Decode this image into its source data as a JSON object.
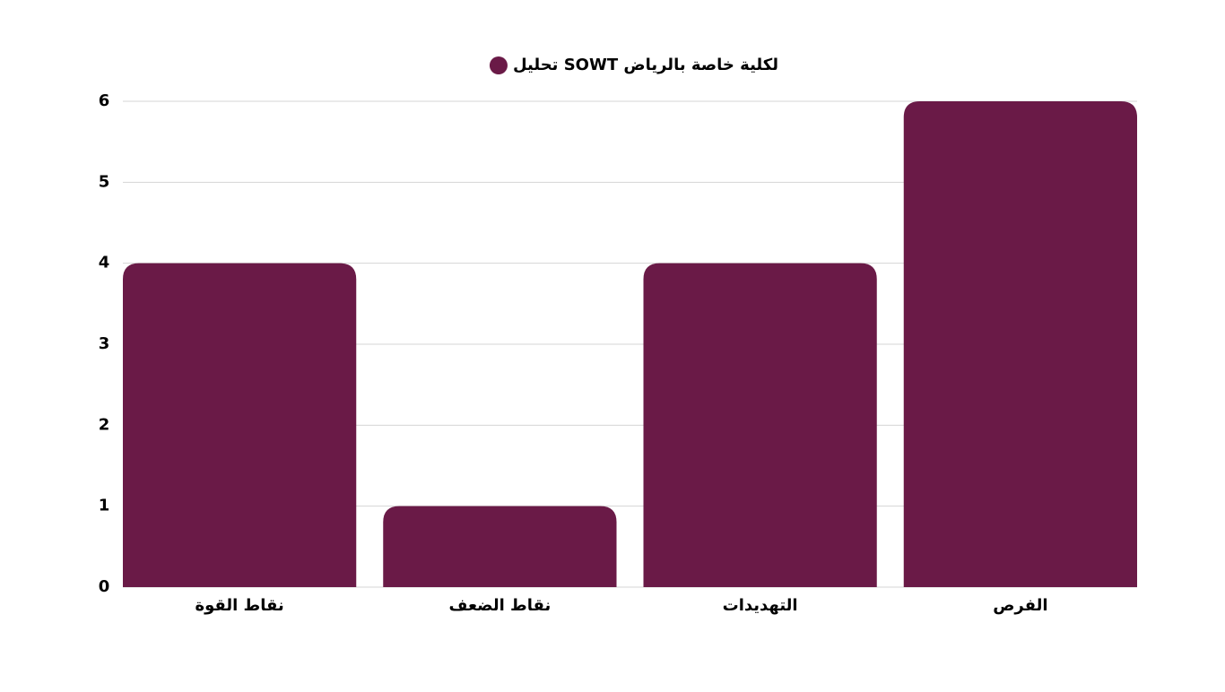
{
  "chart_data": {
    "type": "bar",
    "categories": [
      "نقاط القوة",
      "نقاط الضعف",
      "التهديدات",
      "الفرص"
    ],
    "series": [
      {
        "name": "تحليل SOWT لكلية خاصة بالرياض",
        "color": "#6a1a47",
        "values": [
          4,
          1,
          4,
          6
        ]
      }
    ],
    "ylim": [
      0,
      6
    ],
    "yticks": [
      0,
      1,
      2,
      3,
      4,
      5,
      6
    ],
    "grid": true,
    "legend": "top"
  }
}
